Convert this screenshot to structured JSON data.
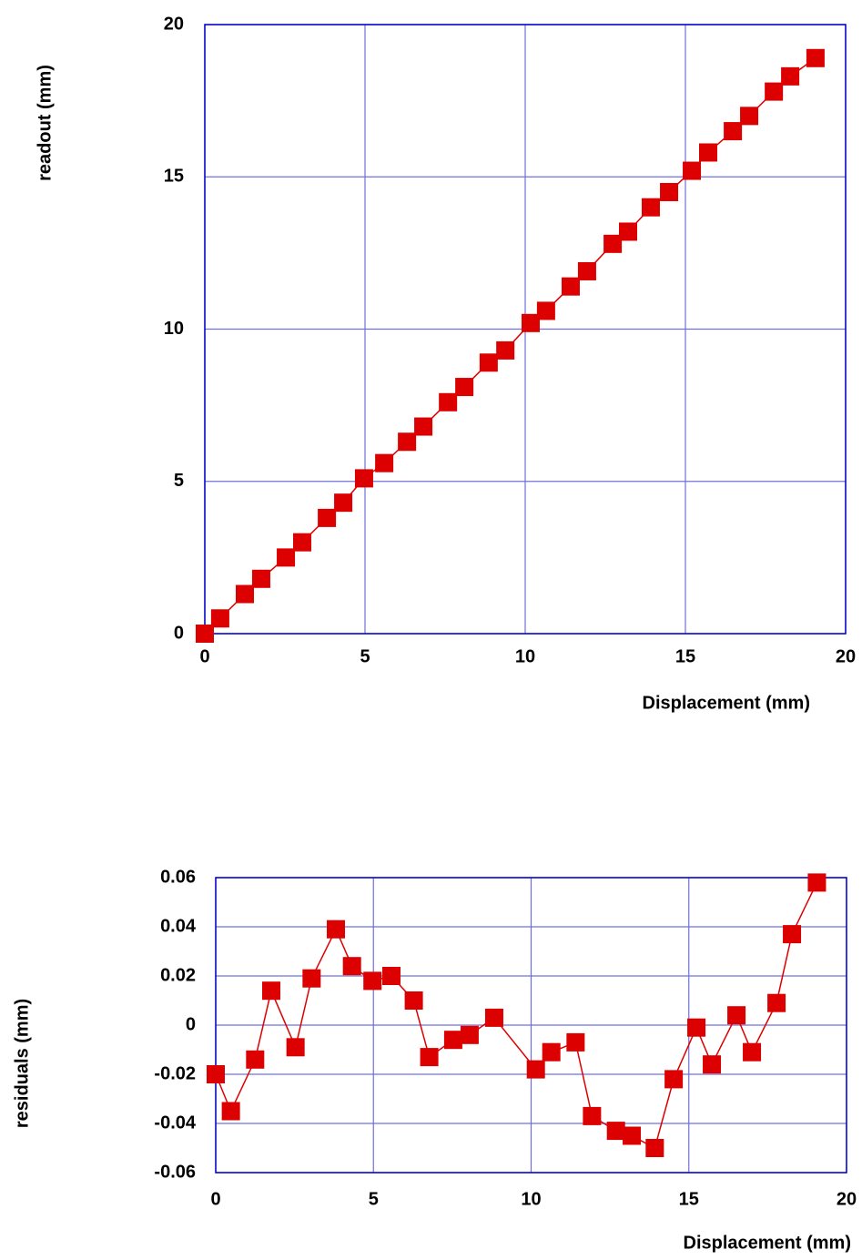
{
  "chart_data": [
    {
      "type": "line",
      "x_label": "Displacement (mm)",
      "y_label": "readout (mm)",
      "xlim": [
        0,
        20
      ],
      "xticks": [
        0,
        5,
        10,
        15,
        20
      ],
      "ylim": [
        0,
        20
      ],
      "yticks": [
        0,
        5,
        10,
        15,
        20
      ],
      "grid": true,
      "series": [
        {
          "color": "#dd0000",
          "x": [
            0,
            0.48,
            1.25,
            1.76,
            2.53,
            3.04,
            3.81,
            4.32,
            4.97,
            5.6,
            6.31,
            6.82,
            7.59,
            8.1,
            8.86,
            9.38,
            10.17,
            10.65,
            11.42,
            11.93,
            12.73,
            13.21,
            13.92,
            14.49,
            15.2,
            15.71,
            16.48,
            16.99,
            17.76,
            18.27,
            19.06
          ],
          "values": [
            0,
            0.5,
            1.3,
            1.8,
            2.5,
            3.0,
            3.8,
            4.3,
            5.1,
            5.6,
            6.3,
            6.8,
            7.6,
            8.1,
            8.9,
            9.3,
            10.2,
            10.6,
            11.4,
            11.9,
            12.8,
            13.2,
            14.0,
            14.5,
            15.2,
            15.8,
            16.5,
            17.0,
            17.8,
            18.3,
            18.9
          ]
        }
      ]
    },
    {
      "type": "line",
      "x_label": "Displacement (mm)",
      "y_label": "residuals (mm)",
      "xlim": [
        0,
        20
      ],
      "xticks": [
        0,
        5,
        10,
        15,
        20
      ],
      "ylim": [
        -0.06,
        0.06
      ],
      "yticks": [
        -0.06,
        -0.04,
        -0.02,
        0,
        0.02,
        0.04,
        0.06
      ],
      "grid": true,
      "series": [
        {
          "color": "#dd0000",
          "x": [
            0,
            0.48,
            1.25,
            1.76,
            2.53,
            3.04,
            3.81,
            4.32,
            4.97,
            5.57,
            6.28,
            6.77,
            7.53,
            8.05,
            8.83,
            10.15,
            10.64,
            11.41,
            11.93,
            12.69,
            13.19,
            13.92,
            14.52,
            15.24,
            15.73,
            16.51,
            17.0,
            17.78,
            18.27,
            19.06
          ],
          "values": [
            -0.02,
            -0.035,
            -0.014,
            0.014,
            -0.009,
            0.019,
            0.039,
            0.024,
            0.018,
            0.02,
            0.01,
            -0.013,
            -0.006,
            -0.004,
            0.003,
            -0.018,
            -0.011,
            -0.007,
            -0.037,
            -0.043,
            -0.045,
            -0.05,
            -0.022,
            -0.001,
            -0.016,
            0.004,
            -0.011,
            0.009,
            0.037,
            0.058
          ]
        }
      ]
    }
  ]
}
